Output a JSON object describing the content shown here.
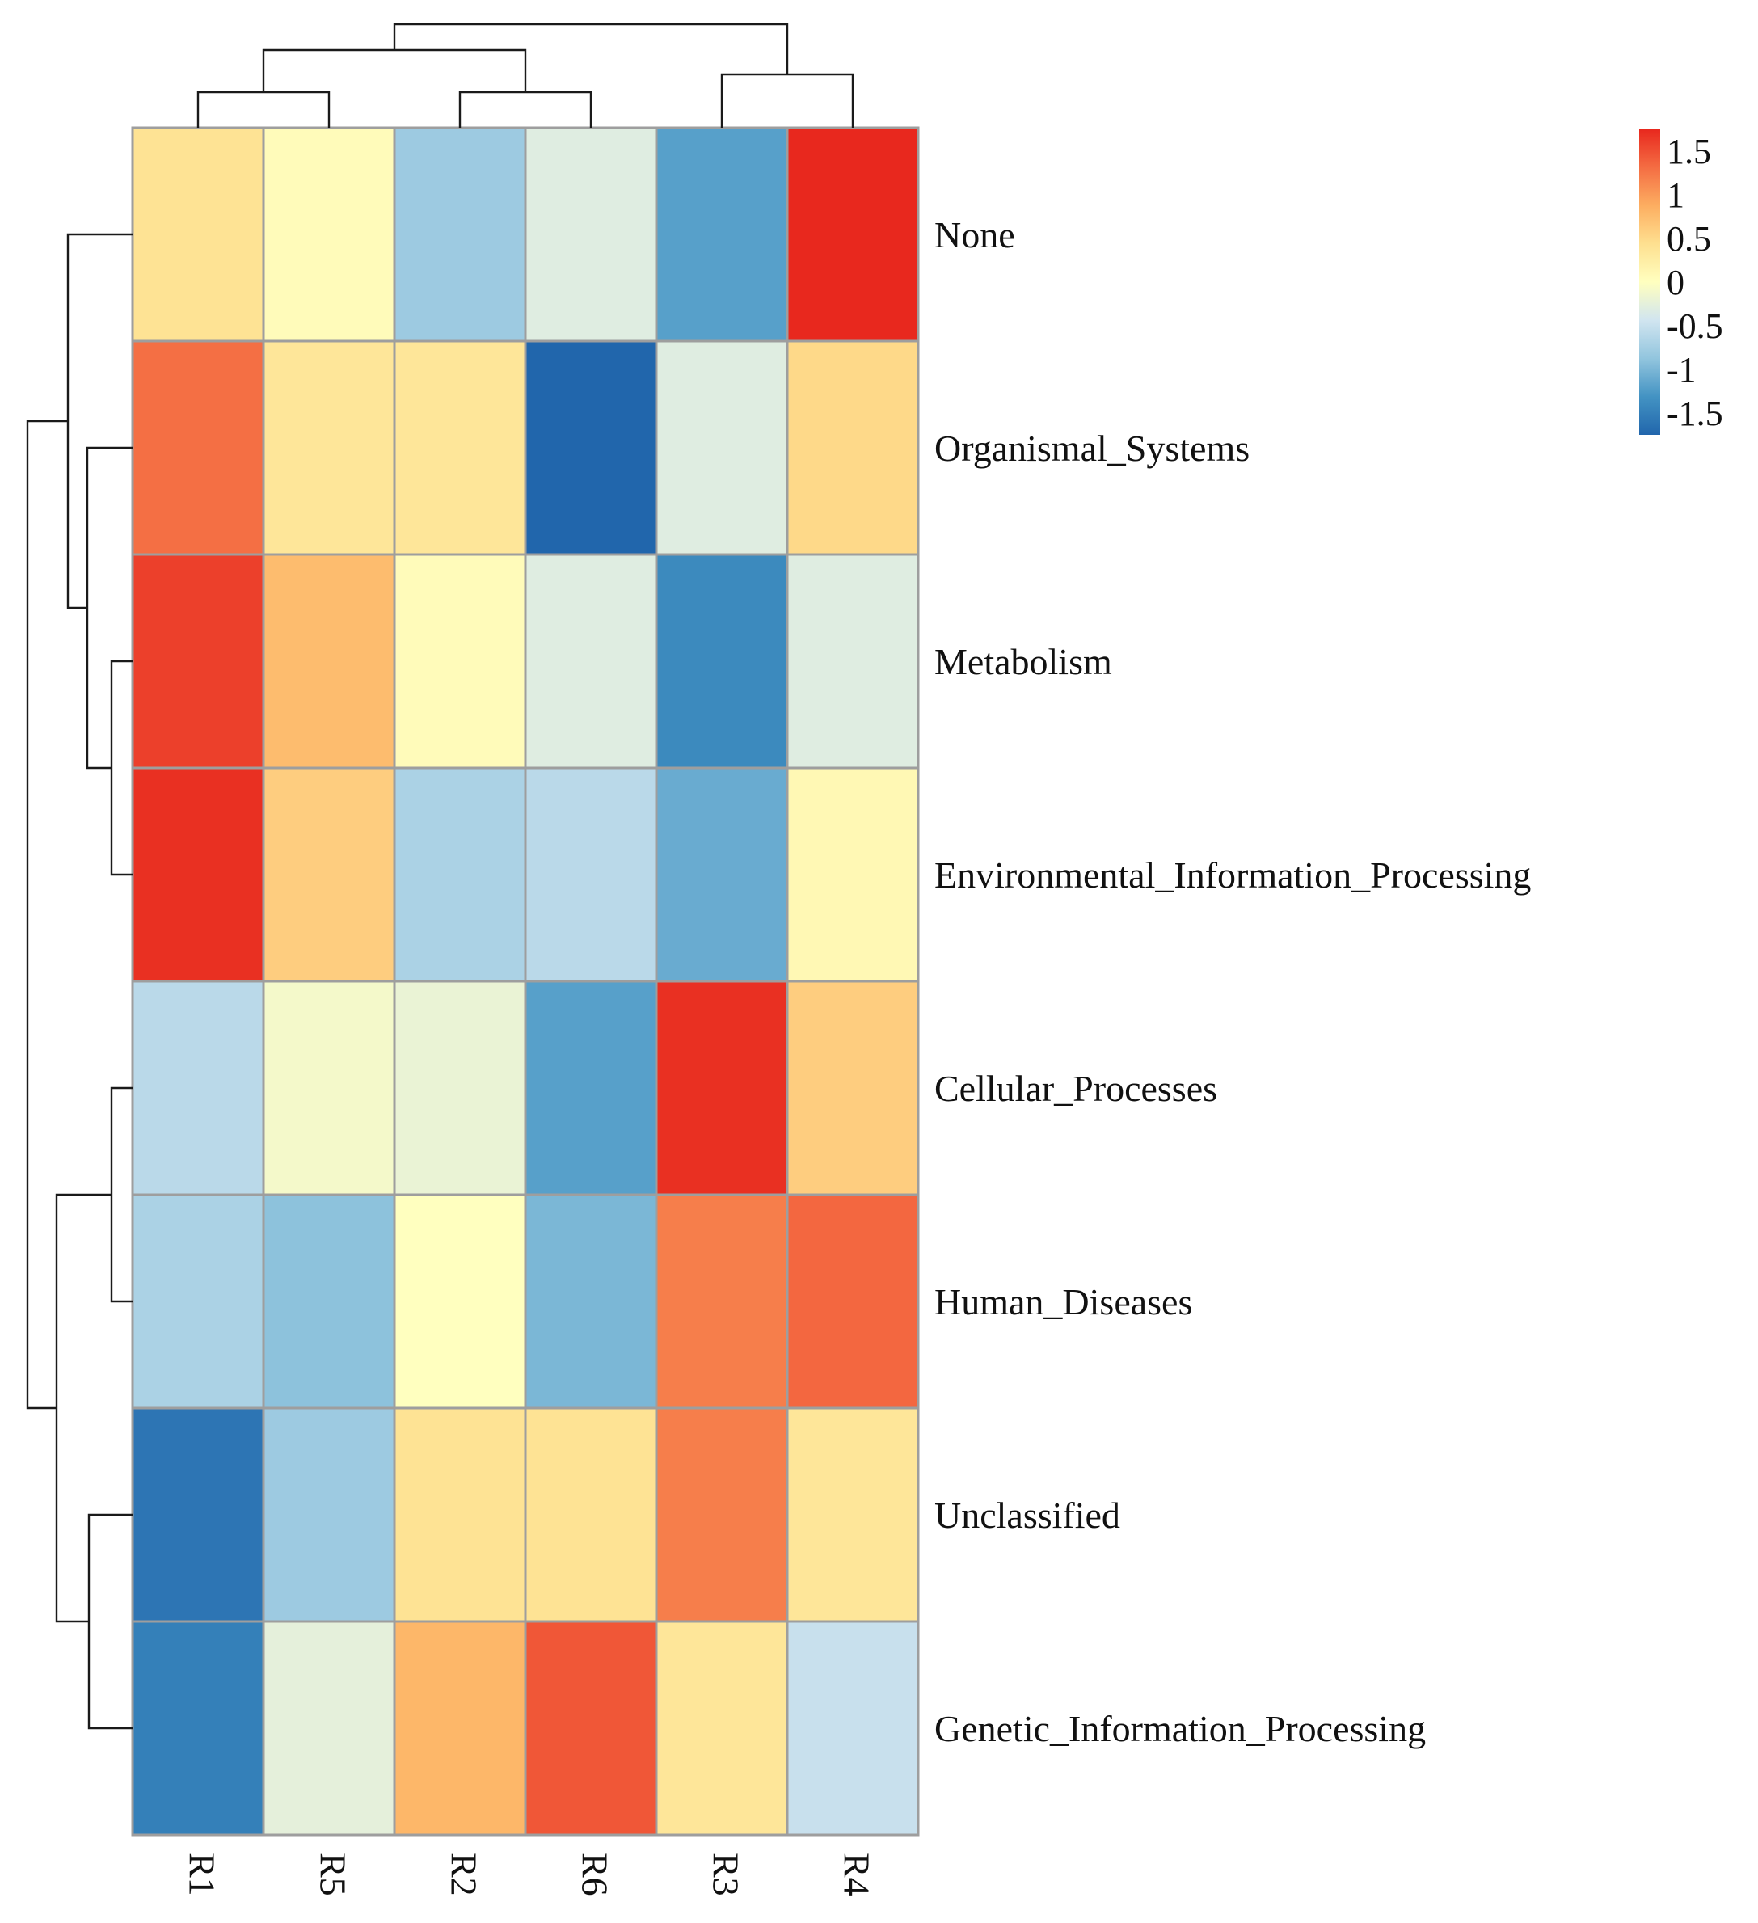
{
  "chart_data": {
    "type": "heatmap",
    "title": "",
    "columns": [
      "R1",
      "R5",
      "R2",
      "R6",
      "R3",
      "R4"
    ],
    "rows": [
      "None",
      "Organismal_Systems",
      "Metabolism",
      "Environmental_Information_Processing",
      "Cellular_Processes",
      "Human_Diseases",
      "Unclassified",
      "Genetic_Information_Processing"
    ],
    "values": [
      [
        0.4,
        0.05,
        -0.8,
        -0.3,
        -1.2,
        1.75
      ],
      [
        1.3,
        0.35,
        0.35,
        -1.75,
        -0.3,
        0.5
      ],
      [
        1.6,
        0.75,
        0.05,
        -0.3,
        -1.4,
        -0.3
      ],
      [
        1.7,
        0.6,
        -0.7,
        -0.6,
        -1.1,
        0.1
      ],
      [
        -0.6,
        -0.1,
        -0.2,
        -1.2,
        1.7,
        0.6
      ],
      [
        -0.7,
        -0.9,
        0.0,
        -1.0,
        1.2,
        1.35
      ],
      [
        -1.6,
        -0.8,
        0.4,
        0.4,
        1.2,
        0.35
      ],
      [
        -1.5,
        -0.25,
        0.8,
        1.45,
        0.35,
        -0.5
      ]
    ],
    "color_scale": {
      "min": -1.75,
      "max": 1.75,
      "colors": [
        "#2166ac",
        "#4393c3",
        "#92c5de",
        "#d1e5f0",
        "#ffffbf",
        "#fee090",
        "#fdae61",
        "#f46d43",
        "#e8281e"
      ]
    },
    "legend": {
      "ticks": [
        "1.5",
        "1",
        "0.5",
        "0",
        "-0.5",
        "-1",
        "-1.5"
      ],
      "tick_values": [
        1.5,
        1,
        0.5,
        0,
        -0.5,
        -1,
        -1.5
      ],
      "placement": "top-right"
    },
    "column_dendrogram": [
      [
        1,
        2
      ],
      [
        3,
        4
      ],
      [
        5,
        6
      ],
      [
        7,
        8
      ],
      [
        9,
        10
      ]
    ],
    "row_dendrogram": [
      [
        3,
        4
      ],
      [
        2,
        9
      ],
      [
        1,
        10
      ],
      [
        5,
        6
      ],
      [
        7,
        8
      ],
      [
        12,
        13
      ],
      [
        11,
        14
      ]
    ],
    "xlabel": "",
    "ylabel": ""
  }
}
